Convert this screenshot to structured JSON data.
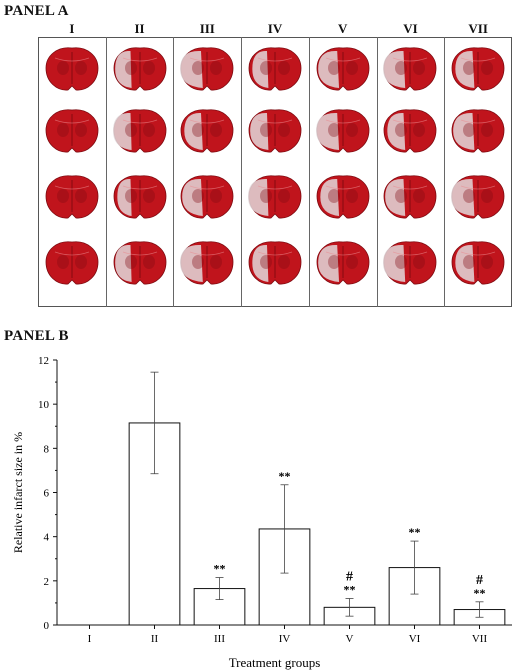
{
  "panel_a": {
    "title": "PANEL A",
    "columns": [
      "I",
      "II",
      "III",
      "IV",
      "V",
      "VI",
      "VII"
    ],
    "rows": 4,
    "colors": {
      "tissue": "#c0141c",
      "tissue_dark": "#7d0a10",
      "infarct": "#e2d8da",
      "frame": "#555555"
    }
  },
  "panel_b": {
    "title": "PANEL B"
  },
  "chart_data": {
    "type": "bar",
    "categories": [
      "I",
      "II",
      "III",
      "IV",
      "V",
      "VI",
      "VII"
    ],
    "values": [
      0,
      9.15,
      1.65,
      4.35,
      0.8,
      2.6,
      0.7
    ],
    "errors": [
      0,
      2.3,
      0.5,
      2.0,
      0.4,
      1.2,
      0.35
    ],
    "annotations": [
      "",
      "",
      "**",
      "**",
      "#\n**",
      "**",
      "#\n**"
    ],
    "xlabel": "Treatment groups",
    "ylabel": "Relative infarct size in %",
    "ylim": [
      0,
      12
    ],
    "yticks": [
      "0",
      "2",
      "4",
      "6",
      "8",
      "10",
      "12"
    ],
    "grid": false,
    "bar_color": "#ffffff",
    "edge_color": "#111111"
  }
}
